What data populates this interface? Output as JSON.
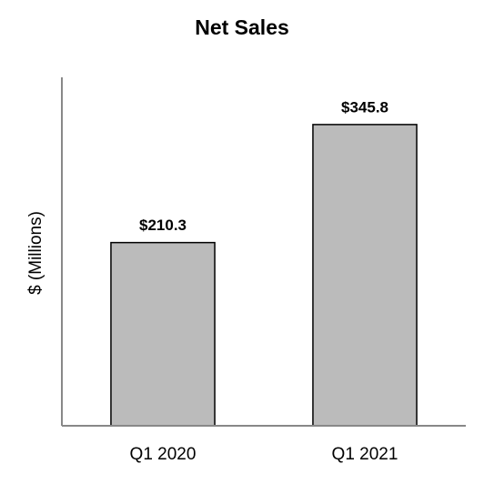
{
  "chart_data": {
    "type": "bar",
    "title": "Net Sales",
    "y_label": "$ (Millions)",
    "categories": [
      "Q1 2020",
      "Q1 2021"
    ],
    "values": [
      210.3,
      345.8
    ],
    "value_labels": [
      "$210.3",
      "$345.8"
    ],
    "color": "#bbbbbb",
    "ylim": [
      0,
      400
    ]
  }
}
